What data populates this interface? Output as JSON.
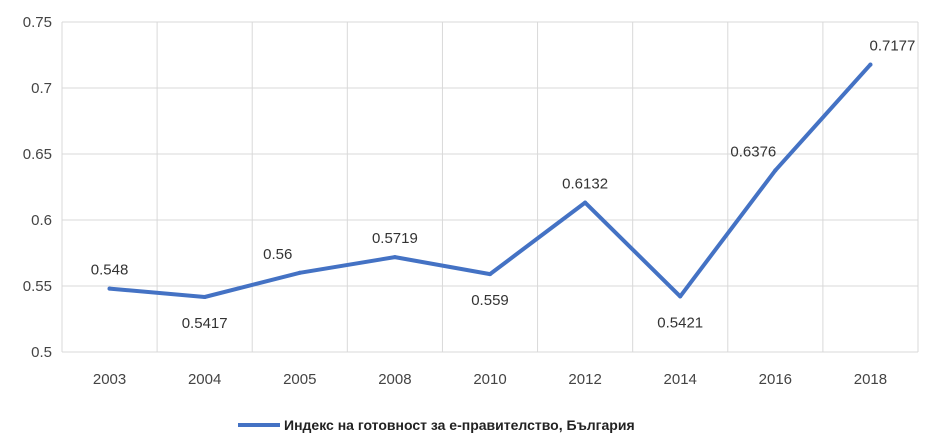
{
  "chart_data": {
    "type": "line",
    "categories": [
      "2003",
      "2004",
      "2005",
      "2008",
      "2010",
      "2012",
      "2014",
      "2016",
      "2018"
    ],
    "series": [
      {
        "name": "Индекс на готовност за е-правителство, България",
        "values": [
          0.548,
          0.5417,
          0.56,
          0.5719,
          0.559,
          0.6132,
          0.5421,
          0.6376,
          0.7177
        ],
        "labels": [
          "0.548",
          "0.5417",
          "0.56",
          "0.5719",
          "0.559",
          "0.6132",
          "0.5421",
          "0.6376",
          "0.7177"
        ],
        "color": "#4472c4"
      }
    ],
    "y_ticks": [
      "0.5",
      "0.55",
      "0.6",
      "0.65",
      "0.7",
      "0.75"
    ],
    "ylim": [
      0.5,
      0.75
    ],
    "grid": true,
    "grid_color": "#d9d9d9",
    "legend": "bottom-center"
  }
}
